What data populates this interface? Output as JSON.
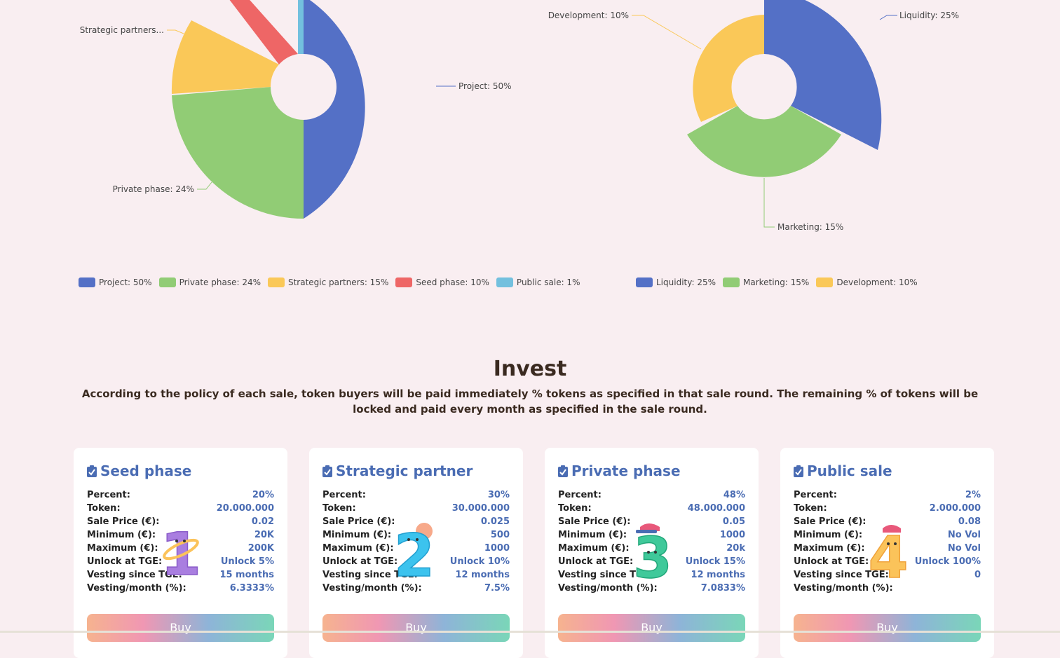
{
  "chart_data": [
    {
      "type": "pie",
      "variant": "rose-donut",
      "title": "",
      "slices": [
        {
          "label": "Project: 50%",
          "value": 50,
          "color": "#5470c6"
        },
        {
          "label": "Private phase: 24%",
          "value": 24,
          "color": "#91cc75"
        },
        {
          "label": "Strategic partners: 15%",
          "value": 15,
          "color": "#fac858"
        },
        {
          "label": "Seed phase: 10%",
          "value": 10,
          "color": "#ee6666"
        },
        {
          "label": "Public sale: 1%",
          "value": 1,
          "color": "#73c0de"
        }
      ],
      "callouts": [
        "Project: 50%",
        "Private phase: 24%",
        "Strategic partners..."
      ],
      "legend": [
        "Project: 50%",
        "Private phase: 24%",
        "Strategic partners: 15%",
        "Seed phase: 10%",
        "Public sale: 1%"
      ],
      "legend_position": "bottom-left"
    },
    {
      "type": "pie",
      "variant": "rose-donut",
      "title": "",
      "slices": [
        {
          "label": "Liquidity: 25%",
          "value": 25,
          "color": "#5470c6"
        },
        {
          "label": "Marketing: 15%",
          "value": 15,
          "color": "#91cc75"
        },
        {
          "label": "Development: 10%",
          "value": 10,
          "color": "#fac858"
        }
      ],
      "callouts": [
        "Liquidity: 25%",
        "Marketing: 15%",
        "Development: 10%"
      ],
      "legend": [
        "Liquidity: 25%",
        "Marketing: 15%",
        "Development: 10%"
      ],
      "legend_position": "bottom"
    }
  ],
  "invest": {
    "title": "Invest",
    "description": "According to the policy of each sale, token buyers will be paid immediately % tokens as specified in that sale round. The remaining % of tokens will be locked and paid every month as specified in the sale round."
  },
  "rows_labels": {
    "percent": "Percent:",
    "token": "Token:",
    "sale_price": "Sale Price (€):",
    "minimum": "Minimum (€):",
    "maximum": "Maximum (€):",
    "unlock_tge": "Unlock at TGE:",
    "vesting_since": "Vesting since TGE:",
    "vesting_month": "Vesting/month (%):"
  },
  "cards": [
    {
      "title": "Seed phase",
      "number": "1",
      "mascot_color": "#a97ee0",
      "percent": "20%",
      "token": "20.000.000",
      "sale_price": "0.02",
      "minimum": "20K",
      "maximum": "200K",
      "unlock_tge": "Unlock 5%",
      "vesting_since": "15 months",
      "vesting_month": "6.3333%",
      "buy_label": "Buy"
    },
    {
      "title": "Strategic partner",
      "number": "2",
      "mascot_color": "#3cc3ee",
      "percent": "30%",
      "token": "30.000.000",
      "sale_price": "0.025",
      "minimum": "500",
      "maximum": "1000",
      "unlock_tge": "Unlock 10%",
      "vesting_since": "12 months",
      "vesting_month": "7.5%",
      "buy_label": "Buy"
    },
    {
      "title": "Private phase",
      "number": "3",
      "mascot_color": "#3fc99a",
      "percent": "48%",
      "token": "48.000.000",
      "sale_price": "0.05",
      "minimum": "1000",
      "maximum": "20k",
      "unlock_tge": "Unlock 15%",
      "vesting_since": "12 months",
      "vesting_month": "7.0833%",
      "buy_label": "Buy"
    },
    {
      "title": "Public sale",
      "number": "4",
      "mascot_color": "#fbc35a",
      "percent": "2%",
      "token": "2.000.000",
      "sale_price": "0.08",
      "minimum": "No Vol",
      "maximum": "No Vol",
      "unlock_tge": "Unlock 100%",
      "vesting_since": "0",
      "vesting_month": "",
      "buy_label": "Buy"
    }
  ]
}
